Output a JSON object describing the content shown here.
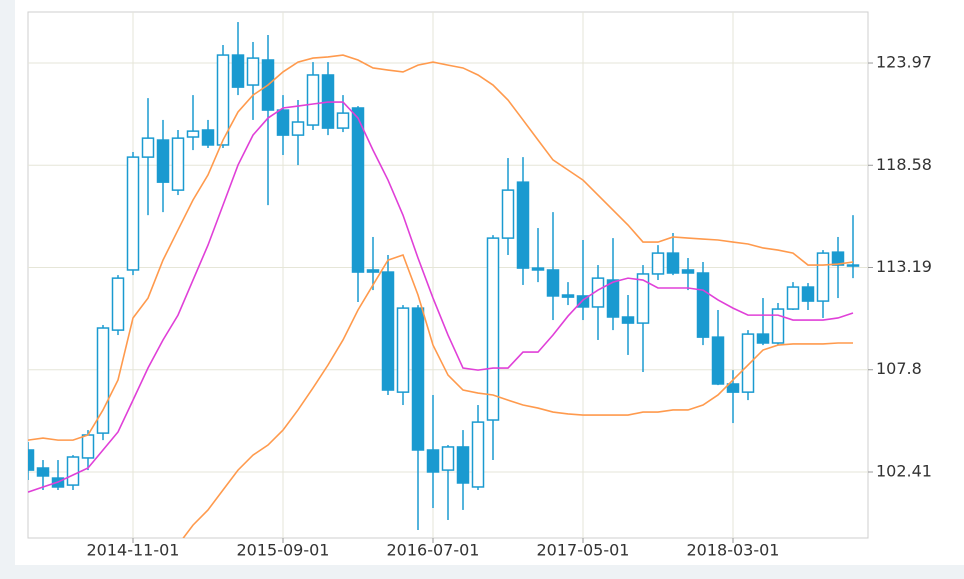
{
  "chart_data": {
    "type": "candlestick",
    "categories": [
      null,
      null,
      null,
      null,
      null,
      null,
      null,
      "2014-11-01",
      null,
      null,
      null,
      null,
      null,
      null,
      null,
      null,
      null,
      "2015-09-01",
      null,
      null,
      null,
      null,
      null,
      null,
      null,
      null,
      null,
      "2016-07-01",
      null,
      null,
      null,
      null,
      null,
      null,
      null,
      null,
      null,
      "2017-05-01",
      null,
      null,
      null,
      null,
      null,
      null,
      null,
      null,
      null,
      "2018-03-01",
      null,
      null,
      null,
      null,
      null,
      null,
      null,
      null
    ],
    "open": [
      103.57,
      102.62,
      102.09,
      101.72,
      103.15,
      104.46,
      109.89,
      113.06,
      119.01,
      119.91,
      117.27,
      120.07,
      120.44,
      119.65,
      124.39,
      122.81,
      124.13,
      121.49,
      120.17,
      120.7,
      123.34,
      120.54,
      121.6,
      113.06,
      112.95,
      106.62,
      111.05,
      103.57,
      102.51,
      103.73,
      101.62,
      105.15,
      114.74,
      117.69,
      113.16,
      113.06,
      111.74,
      111.69,
      111.11,
      112.53,
      110.58,
      110.26,
      112.85,
      113.95,
      113.06,
      112.9,
      109.52,
      107.05,
      106.62,
      109.68,
      109.21,
      111.0,
      112.16,
      111.42,
      114.0,
      113.32
    ],
    "high": [
      103.99,
      103.04,
      103.04,
      103.3,
      104.62,
      110.16,
      112.79,
      119.28,
      122.12,
      120.97,
      120.44,
      122.28,
      120.97,
      124.92,
      126.13,
      125.08,
      125.45,
      122.28,
      122.02,
      124.02,
      124.02,
      122.28,
      121.7,
      114.8,
      113.85,
      111.21,
      111.21,
      106.47,
      103.83,
      104.62,
      105.94,
      114.9,
      118.96,
      119.01,
      115.27,
      116.11,
      112.42,
      114.64,
      113.32,
      114.74,
      111.74,
      113.32,
      114.37,
      115.01,
      113.69,
      113.48,
      110.95,
      107.78,
      109.89,
      111.58,
      111.32,
      112.42,
      112.37,
      114.11,
      114.8,
      115.95
    ],
    "low": [
      101.99,
      101.46,
      101.46,
      101.46,
      102.51,
      104.09,
      109.63,
      112.79,
      115.95,
      116.11,
      117.01,
      119.38,
      119.49,
      119.49,
      122.28,
      120.97,
      116.48,
      119.12,
      118.59,
      120.44,
      120.17,
      120.33,
      111.37,
      112.0,
      106.47,
      105.94,
      99.35,
      100.51,
      99.88,
      100.41,
      101.46,
      103.04,
      113.85,
      112.27,
      112.42,
      110.42,
      111.21,
      110.42,
      109.37,
      109.89,
      108.58,
      107.68,
      112.53,
      112.79,
      112.0,
      109.1,
      106.99,
      104.99,
      106.2,
      109.1,
      109.1,
      110.95,
      110.95,
      110.53,
      111.58,
      112.63
    ],
    "close": [
      102.51,
      102.2,
      101.62,
      103.2,
      104.36,
      110.0,
      112.63,
      119.01,
      120.01,
      117.69,
      120.01,
      120.38,
      119.65,
      124.39,
      122.7,
      124.23,
      121.49,
      120.17,
      120.86,
      123.34,
      120.54,
      121.33,
      112.95,
      112.95,
      106.73,
      111.05,
      103.57,
      102.41,
      103.73,
      101.83,
      105.04,
      114.74,
      117.27,
      113.16,
      113.06,
      111.69,
      111.63,
      111.11,
      112.63,
      110.58,
      110.26,
      112.85,
      113.95,
      112.9,
      112.9,
      109.52,
      107.05,
      106.62,
      109.68,
      109.21,
      111.0,
      112.16,
      111.42,
      113.95,
      113.32,
      113.27
    ],
    "color": "#1a9ad0",
    "overlays": [
      {
        "color": "#ff9a4d",
        "values": [
          104.09,
          104.2,
          104.09,
          104.09,
          104.36,
          105.68,
          107.26,
          110.53,
          111.58,
          113.58,
          115.17,
          116.75,
          118.07,
          119.91,
          121.39,
          122.28,
          122.81,
          123.5,
          124.02,
          124.23,
          124.29,
          124.39,
          124.13,
          123.71,
          123.6,
          123.5,
          123.86,
          124.02,
          123.86,
          123.71,
          123.34,
          122.81,
          122.02,
          120.97,
          119.91,
          118.86,
          118.33,
          117.8,
          117.01,
          116.22,
          115.43,
          114.53,
          114.53,
          114.8,
          114.74,
          114.69,
          114.64,
          114.53,
          114.43,
          114.22,
          114.11,
          113.95,
          113.32,
          113.32,
          113.37,
          113.48
        ]
      },
      {
        "color": "#e040d8",
        "values": [
          101.35,
          101.62,
          101.88,
          102.25,
          102.62,
          103.57,
          104.52,
          106.2,
          107.89,
          109.37,
          110.68,
          112.53,
          114.37,
          116.48,
          118.59,
          120.17,
          121.07,
          121.6,
          121.7,
          121.81,
          121.91,
          121.91,
          121.07,
          119.38,
          117.8,
          115.95,
          113.69,
          111.58,
          109.63,
          107.89,
          107.78,
          107.89,
          107.89,
          108.73,
          108.73,
          109.63,
          110.63,
          111.48,
          112.0,
          112.42,
          112.63,
          112.53,
          112.11,
          112.11,
          112.11,
          112.0,
          111.48,
          111.05,
          110.68,
          110.68,
          110.68,
          110.42,
          110.42,
          110.42,
          110.53,
          110.79
        ]
      },
      {
        "color": "#ff9a4d",
        "values": [
          null,
          null,
          null,
          null,
          null,
          null,
          null,
          null,
          null,
          null,
          98.56,
          99.61,
          100.41,
          101.46,
          102.51,
          103.3,
          103.83,
          104.62,
          105.68,
          106.84,
          108.05,
          109.37,
          110.95,
          112.27,
          113.58,
          113.85,
          111.74,
          109.1,
          107.52,
          106.73,
          106.57,
          106.47,
          106.2,
          105.94,
          105.78,
          105.57,
          105.47,
          105.41,
          105.41,
          105.41,
          105.41,
          105.57,
          105.57,
          105.68,
          105.68,
          105.94,
          106.47,
          107.26,
          108.05,
          108.84,
          109.1,
          109.16,
          109.16,
          109.16,
          109.21,
          109.21
        ]
      }
    ],
    "ylim": [
      98.93,
      126.66
    ],
    "yticks": [
      102.41,
      107.8,
      113.19,
      118.58,
      123.97
    ],
    "grid": true,
    "y_axis_side": "right"
  }
}
